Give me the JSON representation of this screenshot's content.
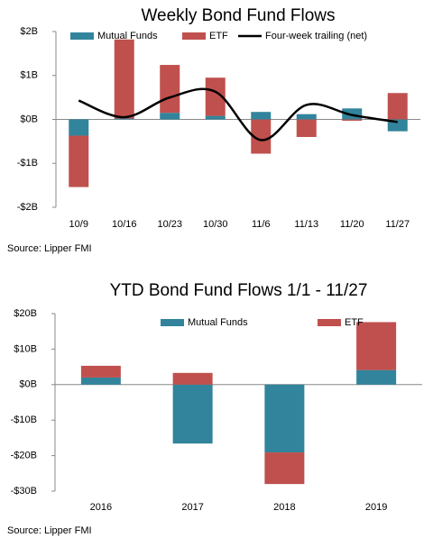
{
  "chart_data": [
    {
      "type": "bar",
      "stacked": true,
      "title": "Weekly Bond Fund Flows",
      "categories": [
        "10/9",
        "10/16",
        "10/23",
        "10/30",
        "11/6",
        "11/13",
        "11/20",
        "11/27"
      ],
      "series": [
        {
          "name": "Mutual Funds",
          "color": "#31849b",
          "values": [
            -0.37,
            0.02,
            0.15,
            0.08,
            0.17,
            0.12,
            0.25,
            -0.27
          ]
        },
        {
          "name": "ETF",
          "color": "#c0504d",
          "values": [
            -1.17,
            1.8,
            1.09,
            0.87,
            -0.78,
            -0.4,
            -0.03,
            0.6
          ]
        },
        {
          "name": "Four-week trailing (net)",
          "type": "line",
          "color": "#000000",
          "values": [
            0.43,
            0.05,
            0.5,
            0.63,
            -0.47,
            0.33,
            0.1,
            -0.06
          ]
        }
      ],
      "ylim": [
        -2,
        2
      ],
      "yticks": [
        {
          "value": -2,
          "label": "-$2B"
        },
        {
          "value": -1,
          "label": "-$1B"
        },
        {
          "value": 0,
          "label": "$0B"
        },
        {
          "value": 1,
          "label": "$1B"
        },
        {
          "value": 2,
          "label": "$2B"
        }
      ],
      "source": "Source: Lipper FMI"
    },
    {
      "type": "bar",
      "stacked": true,
      "title": "YTD Bond Fund Flows 1/1 -  11/27",
      "categories": [
        "2016",
        "2017",
        "2018",
        "2019"
      ],
      "series": [
        {
          "name": "Mutual Funds",
          "color": "#31849b",
          "values": [
            2.0,
            -16.6,
            -19.1,
            4.1
          ]
        },
        {
          "name": "ETF",
          "color": "#c0504d",
          "values": [
            3.3,
            3.3,
            -8.9,
            13.5
          ]
        }
      ],
      "ylim": [
        -30,
        20
      ],
      "yticks": [
        {
          "value": -30,
          "label": "-$30B"
        },
        {
          "value": -20,
          "label": "-$20B"
        },
        {
          "value": -10,
          "label": "-$10B"
        },
        {
          "value": 0,
          "label": "$0B"
        },
        {
          "value": 10,
          "label": "$10B"
        },
        {
          "value": 20,
          "label": "$20B"
        }
      ],
      "source": "Source: Lipper FMI"
    }
  ]
}
